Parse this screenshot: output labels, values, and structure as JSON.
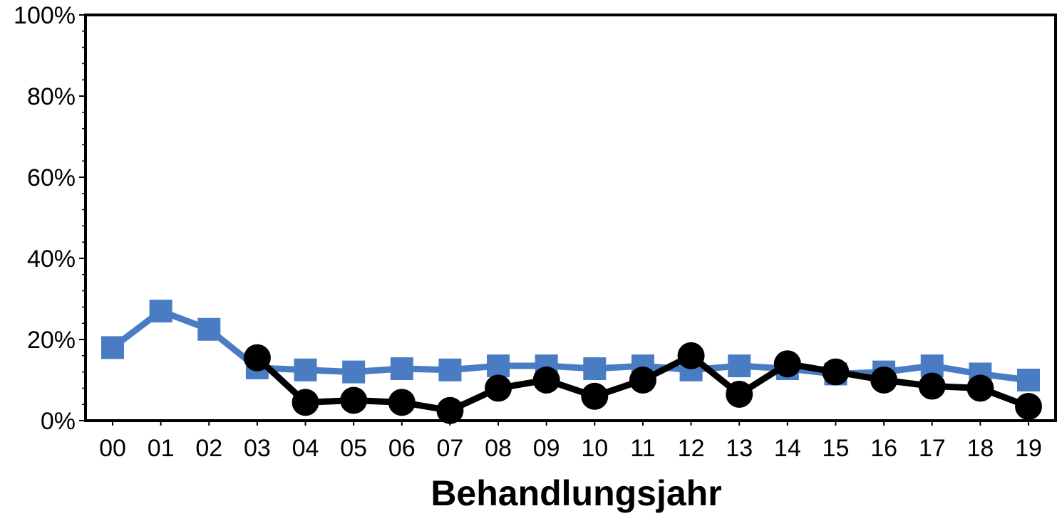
{
  "chart_data": {
    "type": "line",
    "xlabel": "Behandlungsjahr",
    "ylabel": "",
    "title": "",
    "categories": [
      "00",
      "01",
      "02",
      "03",
      "04",
      "05",
      "06",
      "07",
      "08",
      "09",
      "10",
      "11",
      "12",
      "13",
      "14",
      "15",
      "16",
      "17",
      "18",
      "19"
    ],
    "ylim": [
      0,
      100
    ],
    "yticks": [
      0,
      20,
      40,
      60,
      80,
      100
    ],
    "ytick_labels": [
      "0%",
      "20%",
      "40%",
      "60%",
      "80%",
      "100%"
    ],
    "grid": false,
    "legend": "none",
    "series": [
      {
        "color": "#4a7cc4",
        "marker": "square",
        "values": [
          18.0,
          27.0,
          22.5,
          13.0,
          12.5,
          12.0,
          12.8,
          12.5,
          13.5,
          13.5,
          12.8,
          13.5,
          12.5,
          13.5,
          12.8,
          11.5,
          12.0,
          13.5,
          11.5,
          10.0
        ]
      },
      {
        "color": "#000000",
        "marker": "circle",
        "values": [
          null,
          null,
          null,
          15.5,
          4.5,
          5.0,
          4.5,
          2.5,
          8.0,
          10.0,
          6.0,
          10.0,
          16.0,
          6.5,
          14.0,
          12.0,
          10.0,
          8.5,
          8.0,
          3.5
        ]
      }
    ]
  }
}
